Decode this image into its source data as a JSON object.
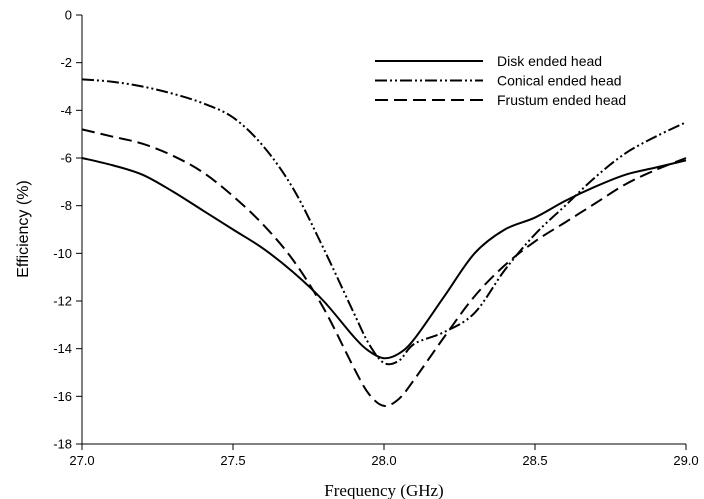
{
  "chart_data": {
    "type": "line",
    "xlabel": "Frequency (GHz)",
    "ylabel": "Efficiency (%)",
    "xlim": [
      27.0,
      29.0
    ],
    "ylim": [
      -18,
      0
    ],
    "xticks": [
      27.0,
      27.5,
      28.0,
      28.5,
      29.0
    ],
    "xtick_labels": [
      "27.0",
      "27.5",
      "28.0",
      "28.5",
      "29.0"
    ],
    "yticks": [
      0,
      -2,
      -4,
      -6,
      -8,
      -10,
      -12,
      -14,
      -16,
      -18
    ],
    "ytick_labels": [
      "0",
      "-2",
      "-4",
      "-6",
      "-8",
      "-10",
      "-12",
      "-14",
      "-16",
      "-18"
    ],
    "grid": false,
    "legend_position": "top-right",
    "series": [
      {
        "name": "Disk ended head",
        "style": "solid",
        "x": [
          27.0,
          27.1,
          27.2,
          27.3,
          27.4,
          27.5,
          27.6,
          27.7,
          27.8,
          27.9,
          27.95,
          28.0,
          28.05,
          28.1,
          28.2,
          28.3,
          28.4,
          28.5,
          28.6,
          28.7,
          28.8,
          28.9,
          29.0
        ],
        "y": [
          -6.0,
          -6.3,
          -6.7,
          -7.4,
          -8.2,
          -9.0,
          -9.8,
          -10.8,
          -12.0,
          -13.5,
          -14.1,
          -14.4,
          -14.2,
          -13.6,
          -11.8,
          -10.0,
          -9.0,
          -8.5,
          -7.8,
          -7.2,
          -6.7,
          -6.4,
          -6.1
        ]
      },
      {
        "name": "Conical ended head",
        "style": "dash-dot-dot",
        "x": [
          27.0,
          27.1,
          27.2,
          27.3,
          27.4,
          27.5,
          27.6,
          27.7,
          27.8,
          27.9,
          27.95,
          28.0,
          28.05,
          28.1,
          28.2,
          28.3,
          28.4,
          28.5,
          28.6,
          28.7,
          28.8,
          28.9,
          29.0
        ],
        "y": [
          -2.7,
          -2.8,
          -3.0,
          -3.3,
          -3.7,
          -4.3,
          -5.5,
          -7.3,
          -9.8,
          -12.5,
          -13.8,
          -14.6,
          -14.5,
          -13.8,
          -13.3,
          -12.5,
          -10.7,
          -9.2,
          -8.0,
          -6.8,
          -5.8,
          -5.1,
          -4.5
        ]
      },
      {
        "name": "Frustum ended head",
        "style": "dashed",
        "x": [
          27.0,
          27.1,
          27.2,
          27.3,
          27.4,
          27.5,
          27.6,
          27.7,
          27.8,
          27.9,
          27.95,
          28.0,
          28.05,
          28.1,
          28.2,
          28.3,
          28.4,
          28.5,
          28.6,
          28.7,
          28.8,
          28.9,
          29.0
        ],
        "y": [
          -4.8,
          -5.1,
          -5.4,
          -5.9,
          -6.6,
          -7.6,
          -8.8,
          -10.3,
          -12.3,
          -14.8,
          -15.9,
          -16.4,
          -16.1,
          -15.3,
          -13.5,
          -11.8,
          -10.5,
          -9.5,
          -8.7,
          -7.9,
          -7.1,
          -6.5,
          -6.0
        ]
      }
    ]
  }
}
